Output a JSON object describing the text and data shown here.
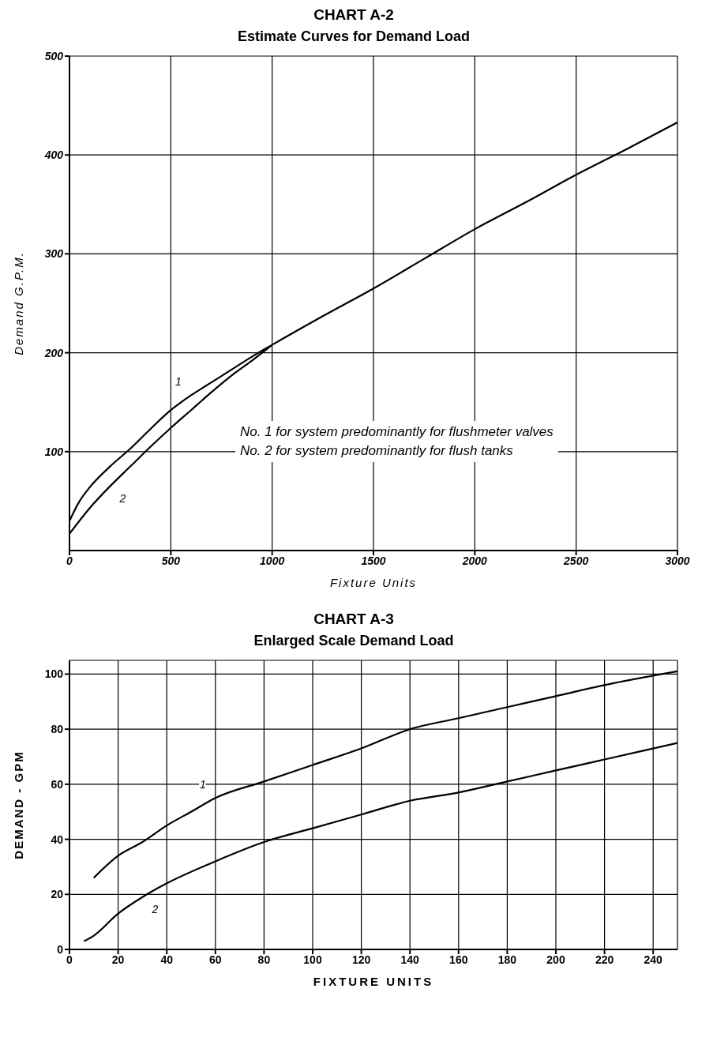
{
  "chart_data": [
    {
      "type": "line",
      "title": "CHART A-2",
      "subtitle": "Estimate Curves for Demand Load",
      "xlabel": "Fixture Units",
      "ylabel": "Demand G.P.M.",
      "xlim": [
        0,
        3000
      ],
      "ylim": [
        0,
        500
      ],
      "xticks": [
        0,
        500,
        1000,
        1500,
        2000,
        2500,
        3000
      ],
      "yticks": [
        100,
        200,
        300,
        400,
        500
      ],
      "grid": true,
      "annotations": [
        "No. 1 for system predominantly for flushmeter valves",
        "No. 2 for system predominantly for flush tanks"
      ],
      "series": [
        {
          "name": "1",
          "color": "#000000",
          "x": [
            0,
            50,
            100,
            200,
            300,
            400,
            500,
            600,
            700,
            800,
            900,
            1000,
            1250,
            1500,
            1750,
            2000,
            2250,
            2500,
            2750,
            3000
          ],
          "values": [
            30,
            50,
            64,
            85,
            103,
            123,
            142,
            157,
            170,
            183,
            196,
            208,
            237,
            265,
            295,
            325,
            352,
            380,
            406,
            433
          ]
        },
        {
          "name": "2",
          "color": "#000000",
          "x": [
            0,
            100,
            200,
            300,
            400,
            500,
            600,
            700,
            800,
            900,
            1000
          ],
          "values": [
            17,
            43,
            65,
            85,
            105,
            124,
            142,
            160,
            177,
            192,
            208
          ]
        }
      ]
    },
    {
      "type": "line",
      "title": "CHART A-3",
      "subtitle": "Enlarged Scale Demand Load",
      "xlabel": "FIXTURE UNITS",
      "ylabel": "DEMAND - GPM",
      "xlim": [
        0,
        250
      ],
      "ylim": [
        0,
        105
      ],
      "xticks": [
        0,
        20,
        40,
        60,
        80,
        100,
        120,
        140,
        160,
        180,
        200,
        220,
        240
      ],
      "yticks": [
        0,
        20,
        40,
        60,
        80,
        100
      ],
      "grid": true,
      "series": [
        {
          "name": "1",
          "color": "#000000",
          "x": [
            10,
            20,
            30,
            40,
            50,
            60,
            80,
            100,
            120,
            140,
            160,
            180,
            200,
            220,
            250
          ],
          "values": [
            26,
            34,
            39,
            45,
            50,
            55,
            61,
            67,
            73,
            80,
            84,
            88,
            92,
            96,
            101
          ]
        },
        {
          "name": "2",
          "color": "#000000",
          "x": [
            6,
            10,
            20,
            30,
            40,
            60,
            80,
            100,
            120,
            140,
            160,
            180,
            200,
            220,
            250
          ],
          "values": [
            3,
            5,
            13,
            19,
            24,
            32,
            39,
            44,
            49,
            54,
            57,
            61,
            65,
            69,
            75
          ]
        }
      ]
    }
  ]
}
